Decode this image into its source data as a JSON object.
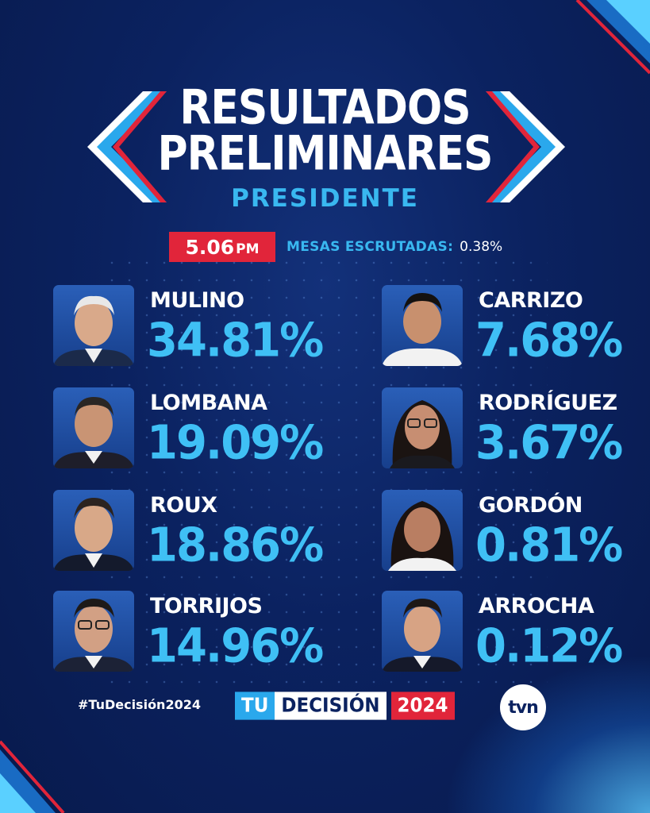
{
  "header": {
    "title_line1": "RESULTADOS",
    "title_line2": "PRELIMINARES",
    "subtitle": "PRESIDENTE"
  },
  "status": {
    "time": "5.06",
    "time_suffix": "PM",
    "mesas_label": "MESAS ESCRUTADAS:",
    "mesas_value": "0.38%"
  },
  "candidates_left": [
    {
      "name": "MULINO",
      "percent": "34.81%",
      "value": 34.81
    },
    {
      "name": "LOMBANA",
      "percent": "19.09%",
      "value": 19.09
    },
    {
      "name": "ROUX",
      "percent": "18.86%",
      "value": 18.86
    },
    {
      "name": "TORRIJOS",
      "percent": "14.96%",
      "value": 14.96
    }
  ],
  "candidates_right": [
    {
      "name": "CARRIZO",
      "percent": "7.68%",
      "value": 7.68
    },
    {
      "name": "RODRÍGUEZ",
      "percent": "3.67%",
      "value": 3.67
    },
    {
      "name": "GORDÓN",
      "percent": "0.81%",
      "value": 0.81
    },
    {
      "name": "ARROCHA",
      "percent": "0.12%",
      "value": 0.12
    }
  ],
  "footer": {
    "hashtag": "#TuDecisión2024",
    "logo_tu": "TU",
    "logo_decision": "DECISIÓN",
    "logo_year": "2024",
    "broadcaster": "tvn"
  },
  "colors": {
    "background": "#0b2260",
    "accent_blue": "#3fc0f5",
    "accent_red": "#e1253a"
  },
  "icons": [
    "candidate-photo",
    "chevron-left-decoration",
    "chevron-right-decoration",
    "tvn-logo"
  ]
}
